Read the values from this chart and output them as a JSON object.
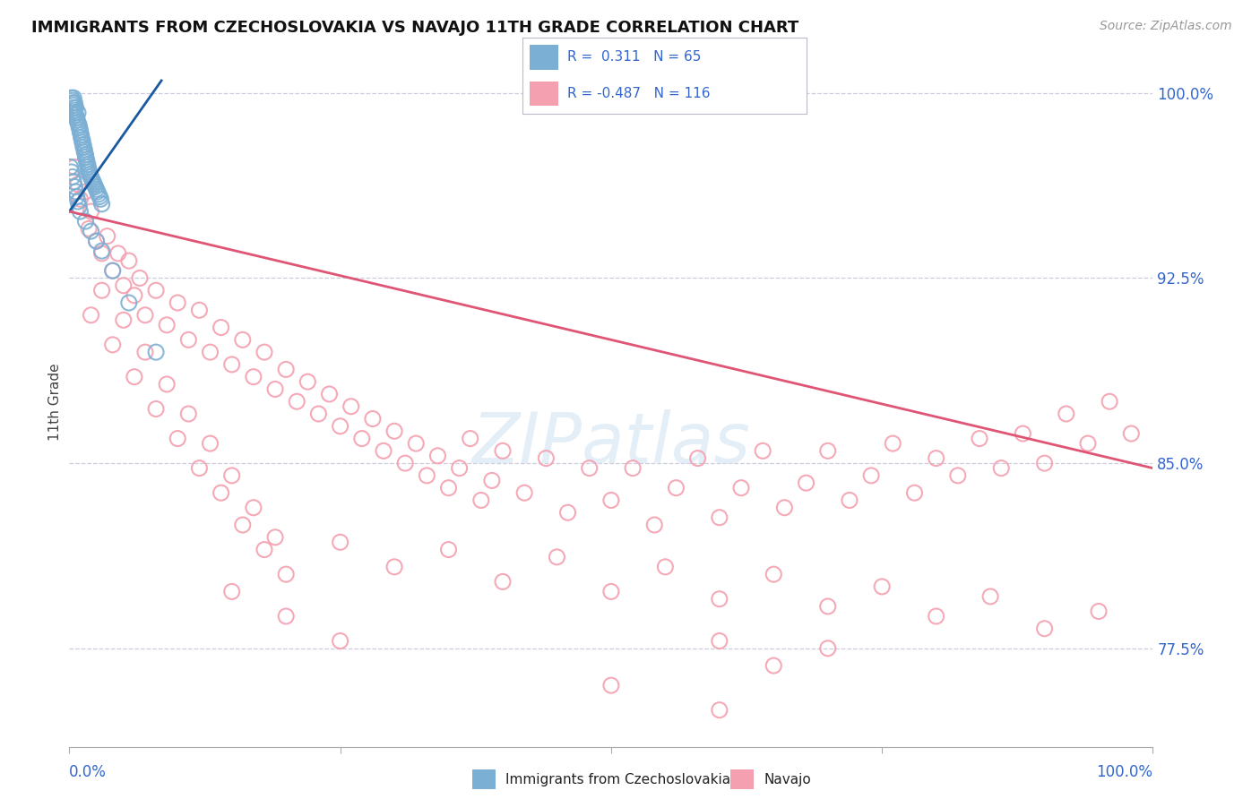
{
  "title": "IMMIGRANTS FROM CZECHOSLOVAKIA VS NAVAJO 11TH GRADE CORRELATION CHART",
  "source": "Source: ZipAtlas.com",
  "ylabel": "11th Grade",
  "ytick_labels": [
    "100.0%",
    "92.5%",
    "85.0%",
    "77.5%"
  ],
  "ytick_values": [
    1.0,
    0.925,
    0.85,
    0.775
  ],
  "legend_blue_R": "0.311",
  "legend_blue_N": "65",
  "legend_pink_R": "-0.487",
  "legend_pink_N": "116",
  "legend_label_blue": "Immigrants from Czechoslovakia",
  "legend_label_pink": "Navajo",
  "watermark": "ZIPatlas",
  "blue_color": "#7BAFD4",
  "pink_color": "#F4A0B0",
  "blue_line_color": "#1A5AA0",
  "pink_line_color": "#E05575",
  "grid_color": "#CCCCDD",
  "background_color": "#FFFFFF",
  "blue_dots": [
    [
      0.002,
      0.998
    ],
    [
      0.003,
      0.997
    ],
    [
      0.003,
      0.996
    ],
    [
      0.004,
      0.998
    ],
    [
      0.004,
      0.995
    ],
    [
      0.004,
      0.994
    ],
    [
      0.005,
      0.996
    ],
    [
      0.005,
      0.993
    ],
    [
      0.005,
      0.992
    ],
    [
      0.006,
      0.994
    ],
    [
      0.006,
      0.991
    ],
    [
      0.007,
      0.99
    ],
    [
      0.007,
      0.989
    ],
    [
      0.008,
      0.992
    ],
    [
      0.008,
      0.988
    ],
    [
      0.009,
      0.987
    ],
    [
      0.009,
      0.986
    ],
    [
      0.01,
      0.985
    ],
    [
      0.01,
      0.984
    ],
    [
      0.011,
      0.983
    ],
    [
      0.011,
      0.982
    ],
    [
      0.012,
      0.981
    ],
    [
      0.012,
      0.98
    ],
    [
      0.013,
      0.979
    ],
    [
      0.013,
      0.978
    ],
    [
      0.014,
      0.977
    ],
    [
      0.014,
      0.976
    ],
    [
      0.015,
      0.975
    ],
    [
      0.015,
      0.974
    ],
    [
      0.016,
      0.973
    ],
    [
      0.016,
      0.972
    ],
    [
      0.017,
      0.971
    ],
    [
      0.017,
      0.97
    ],
    [
      0.018,
      0.969
    ],
    [
      0.018,
      0.968
    ],
    [
      0.019,
      0.967
    ],
    [
      0.02,
      0.966
    ],
    [
      0.021,
      0.965
    ],
    [
      0.022,
      0.964
    ],
    [
      0.023,
      0.963
    ],
    [
      0.024,
      0.962
    ],
    [
      0.025,
      0.961
    ],
    [
      0.026,
      0.96
    ],
    [
      0.027,
      0.959
    ],
    [
      0.028,
      0.958
    ],
    [
      0.029,
      0.957
    ],
    [
      0.03,
      0.955
    ],
    [
      0.001,
      0.97
    ],
    [
      0.002,
      0.968
    ],
    [
      0.003,
      0.966
    ],
    [
      0.004,
      0.964
    ],
    [
      0.005,
      0.962
    ],
    [
      0.006,
      0.96
    ],
    [
      0.007,
      0.958
    ],
    [
      0.008,
      0.956
    ],
    [
      0.009,
      0.954
    ],
    [
      0.01,
      0.952
    ],
    [
      0.015,
      0.948
    ],
    [
      0.02,
      0.944
    ],
    [
      0.025,
      0.94
    ],
    [
      0.03,
      0.936
    ],
    [
      0.04,
      0.928
    ],
    [
      0.055,
      0.915
    ],
    [
      0.08,
      0.895
    ]
  ],
  "pink_dots": [
    [
      0.005,
      0.97
    ],
    [
      0.008,
      0.963
    ],
    [
      0.01,
      0.957
    ],
    [
      0.015,
      0.96
    ],
    [
      0.018,
      0.945
    ],
    [
      0.02,
      0.952
    ],
    [
      0.025,
      0.94
    ],
    [
      0.03,
      0.935
    ],
    [
      0.035,
      0.942
    ],
    [
      0.04,
      0.928
    ],
    [
      0.045,
      0.935
    ],
    [
      0.05,
      0.922
    ],
    [
      0.055,
      0.932
    ],
    [
      0.06,
      0.918
    ],
    [
      0.065,
      0.925
    ],
    [
      0.07,
      0.91
    ],
    [
      0.08,
      0.92
    ],
    [
      0.09,
      0.906
    ],
    [
      0.1,
      0.915
    ],
    [
      0.11,
      0.9
    ],
    [
      0.12,
      0.912
    ],
    [
      0.13,
      0.895
    ],
    [
      0.14,
      0.905
    ],
    [
      0.15,
      0.89
    ],
    [
      0.16,
      0.9
    ],
    [
      0.17,
      0.885
    ],
    [
      0.18,
      0.895
    ],
    [
      0.19,
      0.88
    ],
    [
      0.2,
      0.888
    ],
    [
      0.21,
      0.875
    ],
    [
      0.22,
      0.883
    ],
    [
      0.23,
      0.87
    ],
    [
      0.24,
      0.878
    ],
    [
      0.25,
      0.865
    ],
    [
      0.26,
      0.873
    ],
    [
      0.27,
      0.86
    ],
    [
      0.28,
      0.868
    ],
    [
      0.29,
      0.855
    ],
    [
      0.3,
      0.863
    ],
    [
      0.31,
      0.85
    ],
    [
      0.32,
      0.858
    ],
    [
      0.33,
      0.845
    ],
    [
      0.34,
      0.853
    ],
    [
      0.35,
      0.84
    ],
    [
      0.36,
      0.848
    ],
    [
      0.37,
      0.86
    ],
    [
      0.38,
      0.835
    ],
    [
      0.39,
      0.843
    ],
    [
      0.4,
      0.855
    ],
    [
      0.42,
      0.838
    ],
    [
      0.44,
      0.852
    ],
    [
      0.46,
      0.83
    ],
    [
      0.48,
      0.848
    ],
    [
      0.5,
      0.835
    ],
    [
      0.52,
      0.848
    ],
    [
      0.54,
      0.825
    ],
    [
      0.56,
      0.84
    ],
    [
      0.58,
      0.852
    ],
    [
      0.6,
      0.828
    ],
    [
      0.62,
      0.84
    ],
    [
      0.64,
      0.855
    ],
    [
      0.66,
      0.832
    ],
    [
      0.68,
      0.842
    ],
    [
      0.7,
      0.855
    ],
    [
      0.72,
      0.835
    ],
    [
      0.74,
      0.845
    ],
    [
      0.76,
      0.858
    ],
    [
      0.78,
      0.838
    ],
    [
      0.8,
      0.852
    ],
    [
      0.82,
      0.845
    ],
    [
      0.84,
      0.86
    ],
    [
      0.86,
      0.848
    ],
    [
      0.88,
      0.862
    ],
    [
      0.9,
      0.85
    ],
    [
      0.92,
      0.87
    ],
    [
      0.94,
      0.858
    ],
    [
      0.96,
      0.875
    ],
    [
      0.98,
      0.862
    ],
    [
      0.03,
      0.92
    ],
    [
      0.05,
      0.908
    ],
    [
      0.07,
      0.895
    ],
    [
      0.09,
      0.882
    ],
    [
      0.11,
      0.87
    ],
    [
      0.13,
      0.858
    ],
    [
      0.15,
      0.845
    ],
    [
      0.17,
      0.832
    ],
    [
      0.19,
      0.82
    ],
    [
      0.02,
      0.91
    ],
    [
      0.04,
      0.898
    ],
    [
      0.06,
      0.885
    ],
    [
      0.08,
      0.872
    ],
    [
      0.1,
      0.86
    ],
    [
      0.12,
      0.848
    ],
    [
      0.14,
      0.838
    ],
    [
      0.16,
      0.825
    ],
    [
      0.18,
      0.815
    ],
    [
      0.2,
      0.805
    ],
    [
      0.25,
      0.818
    ],
    [
      0.3,
      0.808
    ],
    [
      0.35,
      0.815
    ],
    [
      0.4,
      0.802
    ],
    [
      0.45,
      0.812
    ],
    [
      0.5,
      0.798
    ],
    [
      0.55,
      0.808
    ],
    [
      0.6,
      0.795
    ],
    [
      0.65,
      0.805
    ],
    [
      0.7,
      0.792
    ],
    [
      0.75,
      0.8
    ],
    [
      0.8,
      0.788
    ],
    [
      0.85,
      0.796
    ],
    [
      0.9,
      0.783
    ],
    [
      0.95,
      0.79
    ],
    [
      0.15,
      0.798
    ],
    [
      0.2,
      0.788
    ],
    [
      0.25,
      0.778
    ],
    [
      0.6,
      0.778
    ],
    [
      0.65,
      0.768
    ],
    [
      0.7,
      0.775
    ],
    [
      0.5,
      0.76
    ],
    [
      0.6,
      0.75
    ]
  ],
  "blue_line_x": [
    0.0,
    0.085
  ],
  "blue_line_y": [
    0.952,
    1.005
  ],
  "pink_line_x": [
    0.0,
    1.0
  ],
  "pink_line_y": [
    0.952,
    0.848
  ],
  "xlim": [
    0.0,
    1.0
  ],
  "ylim": [
    0.735,
    1.015
  ]
}
